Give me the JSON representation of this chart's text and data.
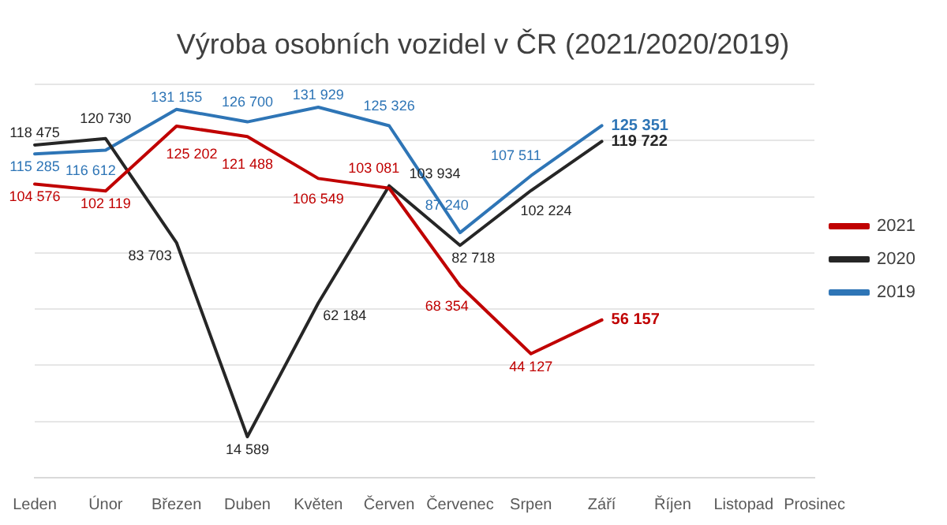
{
  "chart_data": {
    "type": "line",
    "title": "Výroba osobních vozidel v ČR (2021/2020/2019)",
    "categories": [
      "Leden",
      "Únor",
      "Březen",
      "Duben",
      "Květen",
      "Červen",
      "Červenec",
      "Srpen",
      "Září",
      "Říjen",
      "Listopad",
      "Prosinec"
    ],
    "series": [
      {
        "name": "2021",
        "color": "#c00000",
        "values": [
          104576,
          102119,
          125202,
          121488,
          106549,
          103081,
          68354,
          44127,
          56157,
          null,
          null,
          null
        ],
        "value_labels": [
          "104 576",
          "102 119",
          "125 202",
          "121 488",
          "106 549",
          "103 081",
          "68 354",
          "44 127",
          "56 157",
          null,
          null,
          null
        ]
      },
      {
        "name": "2020",
        "color": "#262626",
        "values": [
          118475,
          120730,
          83703,
          14589,
          62184,
          103934,
          82718,
          102224,
          119722,
          null,
          null,
          null
        ],
        "value_labels": [
          "118 475",
          "120 730",
          "83 703",
          "14 589",
          "62 184",
          "103 934",
          "82 718",
          "102 224",
          "119 722",
          null,
          null,
          null
        ]
      },
      {
        "name": "2019",
        "color": "#2e75b6",
        "values": [
          115285,
          116612,
          131155,
          126700,
          131929,
          125326,
          87240,
          107511,
          125351,
          null,
          null,
          null
        ],
        "value_labels": [
          "115 285",
          "116 612",
          "131 155",
          "126 700",
          "131 929",
          "125 326",
          "87 240",
          "107 511",
          "125 351",
          null,
          null,
          null
        ]
      }
    ],
    "ylim": [
      0,
      140000
    ],
    "yticks": [
      {
        "value": 0,
        "label": null
      },
      {
        "value": 20000,
        "label": null
      },
      {
        "value": 40000,
        "label": null
      },
      {
        "value": 60000,
        "label": null
      },
      {
        "value": 80000,
        "label": null
      },
      {
        "value": 100000,
        "label": null
      },
      {
        "value": 120000,
        "label": null
      },
      {
        "value": 140000,
        "label": null
      }
    ],
    "grid": "y",
    "tick_labels": "x",
    "legend": "right",
    "marker": "none",
    "line_style": "solid"
  }
}
